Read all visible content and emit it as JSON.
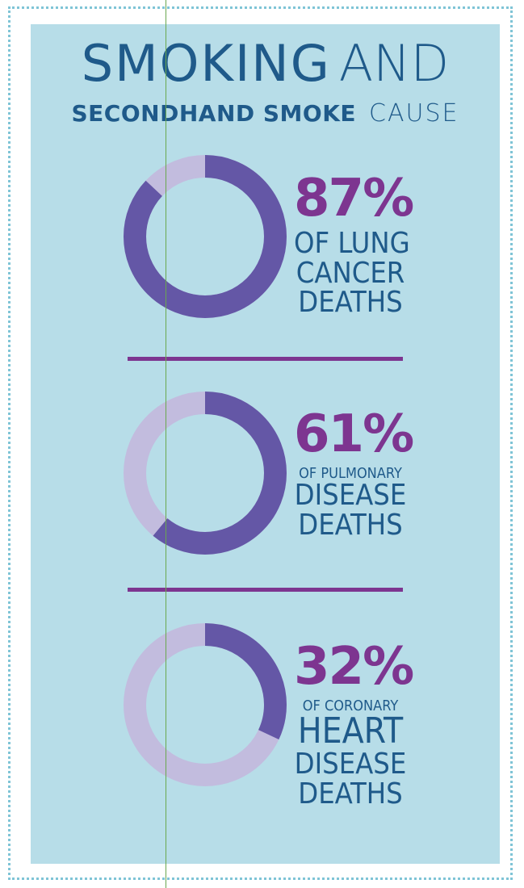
{
  "title": {
    "line1_bold": "SMOKING",
    "line1_light": "AND",
    "line2_bold": "SECONDHAND SMOKE",
    "line2_light": "CAUSE"
  },
  "colors": {
    "panel": "#b7dde8",
    "title": "#1f5a8a",
    "percent": "#7d3590",
    "donut_fill": "#6457a6",
    "donut_rest": "#c2bcde",
    "frame": "#7fc4d6"
  },
  "chart_data": [
    {
      "type": "pie",
      "donut": true,
      "value": 87,
      "label": "87%",
      "lines": [
        "OF LUNG",
        "CANCER",
        "DEATHS"
      ]
    },
    {
      "type": "pie",
      "donut": true,
      "value": 61,
      "label": "61%",
      "lines": [
        "OF PULMONARY",
        "DISEASE",
        "DEATHS"
      ]
    },
    {
      "type": "pie",
      "donut": true,
      "value": 32,
      "label": "32%",
      "lines": [
        "OF CORONARY",
        "HEART",
        "DISEASE",
        "DEATHS"
      ]
    }
  ]
}
